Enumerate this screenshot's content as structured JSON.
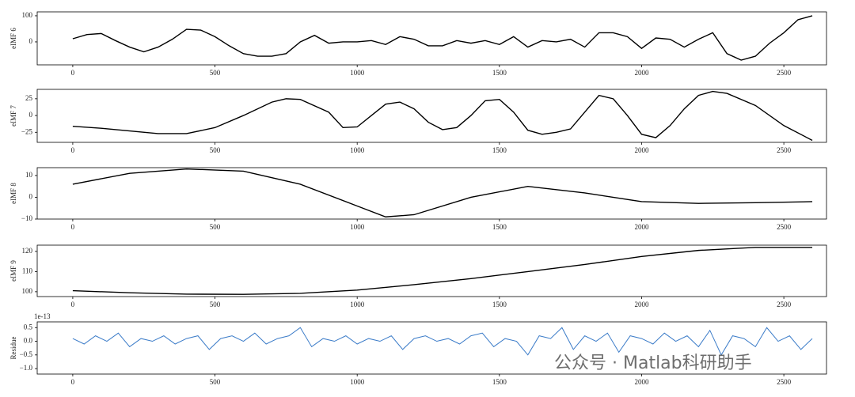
{
  "chart_data": [
    {
      "type": "line",
      "ylabel": "eIMF 6",
      "color": "#000000",
      "x": [
        0,
        50,
        100,
        150,
        200,
        250,
        300,
        350,
        400,
        450,
        500,
        550,
        600,
        650,
        700,
        750,
        800,
        850,
        900,
        950,
        1000,
        1050,
        1100,
        1150,
        1200,
        1250,
        1300,
        1350,
        1400,
        1450,
        1500,
        1550,
        1600,
        1650,
        1700,
        1750,
        1800,
        1850,
        1900,
        1950,
        2000,
        2050,
        2100,
        2150,
        2200,
        2250,
        2300,
        2350,
        2400,
        2450,
        2500,
        2550,
        2600
      ],
      "values": [
        12,
        28,
        32,
        5,
        -20,
        -38,
        -20,
        10,
        48,
        45,
        20,
        -15,
        -45,
        -55,
        -55,
        -45,
        0,
        25,
        -5,
        0,
        0,
        5,
        -10,
        20,
        10,
        -15,
        -15,
        5,
        -5,
        5,
        -10,
        20,
        -20,
        5,
        0,
        10,
        -20,
        35,
        35,
        20,
        -25,
        15,
        10,
        -20,
        10,
        35,
        -45,
        -70,
        -55,
        -5,
        35,
        85,
        100
      ],
      "xlim": [
        -125,
        2650
      ],
      "ylim": [
        -88,
        115
      ],
      "xticks": [
        0,
        500,
        1000,
        1500,
        2000,
        2500
      ],
      "yticks": [
        0,
        100
      ]
    },
    {
      "type": "line",
      "ylabel": "eIMF 7",
      "color": "#000000",
      "x": [
        0,
        100,
        200,
        300,
        400,
        500,
        600,
        700,
        750,
        800,
        900,
        950,
        1000,
        1050,
        1100,
        1150,
        1200,
        1250,
        1300,
        1350,
        1400,
        1450,
        1500,
        1550,
        1600,
        1650,
        1700,
        1750,
        1800,
        1850,
        1900,
        1950,
        2000,
        2050,
        2100,
        2150,
        2200,
        2250,
        2300,
        2400,
        2500,
        2600
      ],
      "values": [
        -16,
        -19,
        -23,
        -27,
        -27,
        -18,
        0,
        20,
        25,
        24,
        5,
        -18,
        -17,
        0,
        17,
        20,
        10,
        -10,
        -21,
        -18,
        0,
        22,
        24,
        5,
        -22,
        -28,
        -25,
        -20,
        5,
        30,
        25,
        0,
        -28,
        -33,
        -15,
        10,
        30,
        36,
        33,
        15,
        -15,
        -37
      ],
      "xlim": [
        -125,
        2650
      ],
      "ylim": [
        -40,
        39
      ],
      "xticks": [
        0,
        500,
        1000,
        1500,
        2000,
        2500
      ],
      "yticks": [
        {
          "value": -25,
          "label": "−25"
        },
        0,
        25
      ]
    },
    {
      "type": "line",
      "ylabel": "eIMF 8",
      "color": "#000000",
      "x": [
        0,
        200,
        400,
        600,
        800,
        1000,
        1100,
        1200,
        1400,
        1600,
        1800,
        2000,
        2200,
        2400,
        2600
      ],
      "values": [
        6,
        11,
        13,
        12,
        6,
        -4,
        -9,
        -8,
        0,
        5,
        2,
        -2,
        -2.8,
        -2.5,
        -2
      ],
      "xlim": [
        -125,
        2650
      ],
      "ylim": [
        -10,
        13.6
      ],
      "xticks": [
        0,
        500,
        1000,
        1500,
        2000,
        2500
      ],
      "yticks": [
        {
          "value": -10,
          "label": "−10"
        },
        0,
        10
      ]
    },
    {
      "type": "line",
      "ylabel": "eIMF 9",
      "color": "#000000",
      "x": [
        0,
        200,
        400,
        600,
        800,
        1000,
        1200,
        1400,
        1600,
        1800,
        2000,
        2200,
        2400,
        2600
      ],
      "values": [
        100.5,
        99.5,
        98.8,
        98.7,
        99.2,
        100.8,
        103.5,
        106.5,
        110,
        113.5,
        117.5,
        120.5,
        122,
        122
      ],
      "xlim": [
        -125,
        2650
      ],
      "ylim": [
        97.6,
        123.1
      ],
      "xticks": [
        0,
        500,
        1000,
        1500,
        2000,
        2500
      ],
      "yticks": [
        100,
        110,
        120
      ]
    },
    {
      "type": "line",
      "ylabel": "Residue",
      "offset_text": "1e-13",
      "color": "#3a7bc8",
      "x": [
        0,
        40,
        80,
        120,
        160,
        200,
        240,
        280,
        320,
        360,
        400,
        440,
        480,
        520,
        560,
        600,
        640,
        680,
        720,
        760,
        800,
        840,
        880,
        920,
        960,
        1000,
        1040,
        1080,
        1120,
        1160,
        1200,
        1240,
        1280,
        1320,
        1360,
        1400,
        1440,
        1480,
        1520,
        1560,
        1600,
        1640,
        1680,
        1720,
        1760,
        1800,
        1840,
        1880,
        1920,
        1960,
        2000,
        2040,
        2080,
        2120,
        2160,
        2200,
        2240,
        2280,
        2320,
        2360,
        2400,
        2440,
        2480,
        2520,
        2560,
        2600
      ],
      "values": [
        0.1,
        -0.1,
        0.2,
        0.0,
        0.3,
        -0.2,
        0.1,
        0.0,
        0.2,
        -0.1,
        0.1,
        0.2,
        -0.3,
        0.1,
        0.2,
        0.0,
        0.3,
        -0.1,
        0.1,
        0.2,
        0.5,
        -0.2,
        0.1,
        0.0,
        0.2,
        -0.1,
        0.1,
        0.0,
        0.2,
        -0.3,
        0.1,
        0.2,
        0.0,
        0.1,
        -0.1,
        0.2,
        0.3,
        -0.2,
        0.1,
        0.0,
        -0.5,
        0.2,
        0.1,
        0.5,
        -0.3,
        0.2,
        0.0,
        0.3,
        -0.4,
        0.2,
        0.1,
        -0.1,
        0.3,
        0.0,
        0.2,
        -0.2,
        0.4,
        -0.5,
        0.2,
        0.1,
        -0.2,
        0.5,
        0.0,
        0.2,
        -0.3,
        0.1
      ],
      "xlim": [
        -125,
        2650
      ],
      "ylim": [
        -1.2,
        0.71
      ],
      "xticks": [
        0,
        500,
        1000,
        1500,
        2000,
        2500
      ],
      "yticks": [
        {
          "value": -1.0,
          "label": "−1.0"
        },
        {
          "value": -0.5,
          "label": "−0.5"
        },
        {
          "value": 0.0,
          "label": "0.0"
        },
        0.5
      ]
    }
  ],
  "watermark": "公众号 · Matlab科研助手"
}
